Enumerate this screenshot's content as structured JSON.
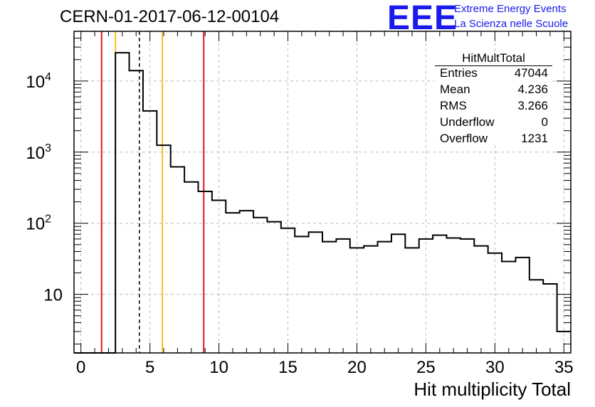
{
  "header": {
    "run_id": "CERN-01-2017-06-12-00104",
    "logo_text": "EEE",
    "logo_line1": "Extreme Energy Events",
    "logo_line2": "La Scienza nelle Scuole"
  },
  "stats": {
    "title": "HitMultTotal",
    "rows": [
      {
        "label": "Entries",
        "value": "47044"
      },
      {
        "label": "Mean",
        "value": "4.236"
      },
      {
        "label": "RMS",
        "value": "3.266"
      },
      {
        "label": "Underflow",
        "value": "0"
      },
      {
        "label": "Overflow",
        "value": "1231"
      }
    ]
  },
  "colors": {
    "histogram": "#000000",
    "red_line": "#e8161a",
    "yellow_line": "#f2c21b",
    "grid": "#bbbbbb"
  },
  "chart_data": {
    "type": "bar",
    "histogram_style": "step",
    "xlabel": "Hit multiplicity Total",
    "ylabel": "",
    "xlim": [
      -0.5,
      35.5
    ],
    "ylim": [
      1.5,
      50000
    ],
    "y_scale": "log",
    "grid": true,
    "x_ticks": [
      "0",
      "5",
      "10",
      "15",
      "20",
      "25",
      "30",
      "35"
    ],
    "x_tick_values": [
      0,
      5,
      10,
      15,
      20,
      25,
      30,
      35
    ],
    "y_ticks": [
      {
        "value": 10,
        "label": "10"
      },
      {
        "value": 100,
        "label": "10^2"
      },
      {
        "value": 1000,
        "label": "10^3"
      },
      {
        "value": 10000,
        "label": "10^4"
      }
    ],
    "bin_edges": [
      -0.5,
      0.5,
      1.5,
      2.5,
      3.5,
      4.5,
      5.5,
      6.5,
      7.5,
      8.5,
      9.5,
      10.5,
      11.5,
      12.5,
      13.5,
      14.5,
      15.5,
      16.5,
      17.5,
      18.5,
      19.5,
      20.5,
      21.5,
      22.5,
      23.5,
      24.5,
      25.5,
      26.5,
      27.5,
      28.5,
      29.5,
      30.5,
      31.5,
      32.5,
      33.5,
      34.5,
      35.5
    ],
    "values": [
      0,
      0,
      0,
      25000,
      14000,
      3800,
      1250,
      620,
      380,
      280,
      210,
      140,
      150,
      120,
      105,
      85,
      65,
      75,
      55,
      60,
      45,
      48,
      55,
      70,
      45,
      60,
      68,
      62,
      60,
      48,
      38,
      29,
      33,
      16,
      14,
      3
    ],
    "vertical_lines": [
      {
        "x": 1.5,
        "color": "red",
        "style": "solid"
      },
      {
        "x": 2.5,
        "color": "yellow",
        "style": "solid"
      },
      {
        "x": 4.236,
        "color": "black",
        "style": "dashed"
      },
      {
        "x": 5.9,
        "color": "yellow",
        "style": "solid"
      },
      {
        "x": 8.9,
        "color": "red",
        "style": "solid"
      }
    ]
  }
}
